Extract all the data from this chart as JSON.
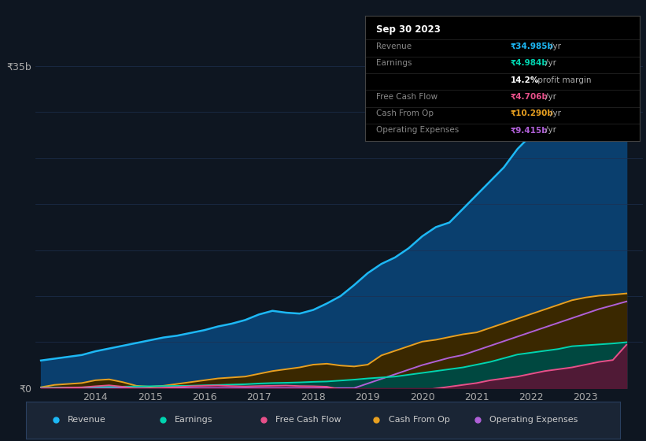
{
  "background_color": "#0e1621",
  "plot_bg_color": "#0e1621",
  "years": [
    2013.0,
    2013.25,
    2013.5,
    2013.75,
    2014.0,
    2014.25,
    2014.5,
    2014.75,
    2015.0,
    2015.25,
    2015.5,
    2015.75,
    2016.0,
    2016.25,
    2016.5,
    2016.75,
    2017.0,
    2017.25,
    2017.5,
    2017.75,
    2018.0,
    2018.25,
    2018.5,
    2018.75,
    2019.0,
    2019.25,
    2019.5,
    2019.75,
    2020.0,
    2020.25,
    2020.5,
    2020.75,
    2021.0,
    2021.25,
    2021.5,
    2021.75,
    2022.0,
    2022.25,
    2022.5,
    2022.75,
    2023.0,
    2023.25,
    2023.5,
    2023.75
  ],
  "revenue": [
    3.0,
    3.2,
    3.4,
    3.6,
    4.0,
    4.3,
    4.6,
    4.9,
    5.2,
    5.5,
    5.7,
    6.0,
    6.3,
    6.7,
    7.0,
    7.4,
    8.0,
    8.4,
    8.2,
    8.1,
    8.5,
    9.2,
    10.0,
    11.2,
    12.5,
    13.5,
    14.2,
    15.2,
    16.5,
    17.5,
    18.0,
    19.5,
    21.0,
    22.5,
    24.0,
    26.0,
    27.5,
    29.0,
    30.5,
    32.5,
    33.5,
    34.2,
    34.7,
    34.985
  ],
  "earnings": [
    0.05,
    0.06,
    0.07,
    0.08,
    0.12,
    0.14,
    0.16,
    0.18,
    0.2,
    0.22,
    0.24,
    0.26,
    0.3,
    0.34,
    0.38,
    0.42,
    0.5,
    0.55,
    0.58,
    0.62,
    0.68,
    0.72,
    0.82,
    0.92,
    1.05,
    1.15,
    1.25,
    1.45,
    1.65,
    1.85,
    2.05,
    2.25,
    2.55,
    2.85,
    3.25,
    3.65,
    3.85,
    4.05,
    4.25,
    4.55,
    4.65,
    4.75,
    4.85,
    4.984
  ],
  "free_cash_flow": [
    0.0,
    0.0,
    0.05,
    0.08,
    0.2,
    0.3,
    0.15,
    -0.05,
    -0.05,
    0.05,
    0.1,
    0.2,
    0.25,
    0.28,
    0.22,
    0.18,
    0.22,
    0.25,
    0.28,
    0.22,
    0.2,
    0.15,
    -0.15,
    -0.45,
    -0.85,
    -0.95,
    -0.75,
    -0.45,
    -0.25,
    -0.05,
    0.15,
    0.35,
    0.55,
    0.85,
    1.05,
    1.25,
    1.55,
    1.85,
    2.05,
    2.25,
    2.55,
    2.85,
    3.05,
    4.706
  ],
  "cash_from_op": [
    0.1,
    0.35,
    0.45,
    0.55,
    0.85,
    0.95,
    0.65,
    0.25,
    0.15,
    0.25,
    0.45,
    0.65,
    0.85,
    1.05,
    1.15,
    1.25,
    1.55,
    1.85,
    2.05,
    2.25,
    2.55,
    2.65,
    2.45,
    2.35,
    2.55,
    3.55,
    4.05,
    4.55,
    5.05,
    5.25,
    5.55,
    5.85,
    6.05,
    6.55,
    7.05,
    7.55,
    8.05,
    8.55,
    9.05,
    9.55,
    9.85,
    10.05,
    10.15,
    10.29
  ],
  "operating_expenses": [
    0.0,
    0.0,
    0.0,
    0.0,
    0.0,
    0.0,
    0.0,
    0.0,
    0.0,
    0.0,
    0.0,
    0.0,
    0.0,
    0.0,
    0.0,
    0.0,
    0.0,
    0.0,
    0.0,
    0.0,
    0.0,
    0.0,
    0.0,
    0.0,
    0.5,
    1.0,
    1.5,
    2.0,
    2.5,
    2.9,
    3.3,
    3.6,
    4.1,
    4.6,
    5.1,
    5.6,
    6.1,
    6.6,
    7.1,
    7.6,
    8.1,
    8.6,
    9.0,
    9.415
  ],
  "ylim": [
    0,
    35
  ],
  "grid_color": "#1e3050",
  "revenue_color": "#1db8f5",
  "earnings_color": "#00d4b0",
  "free_cash_flow_color": "#e8508a",
  "cash_from_op_color": "#e8a020",
  "operating_expenses_color": "#b060d8",
  "revenue_fill": "#0a3f6e",
  "earnings_fill": "#004840",
  "cash_from_op_fill": "#3a2800",
  "operating_expenses_fill": "#2a1050",
  "xtick_years": [
    2014,
    2015,
    2016,
    2017,
    2018,
    2019,
    2020,
    2021,
    2022,
    2023
  ],
  "tooltip_title": "Sep 30 2023",
  "tooltip_rows": [
    {
      "label": "Revenue",
      "color": "#1db8f5",
      "value": "₹34.985b /yr"
    },
    {
      "label": "Earnings",
      "color": "#00d4b0",
      "value": "₹4.984b /yr"
    },
    {
      "label": "",
      "color": "#ffffff",
      "value": "14.2% profit margin"
    },
    {
      "label": "Free Cash Flow",
      "color": "#e8508a",
      "value": "₹4.706b /yr"
    },
    {
      "label": "Cash From Op",
      "color": "#e8a020",
      "value": "₹10.290b /yr"
    },
    {
      "label": "Operating Expenses",
      "color": "#b060d8",
      "value": "₹9.415b /yr"
    }
  ],
  "legend_items": [
    {
      "color": "#1db8f5",
      "label": "Revenue"
    },
    {
      "color": "#00d4b0",
      "label": "Earnings"
    },
    {
      "color": "#e8508a",
      "label": "Free Cash Flow"
    },
    {
      "color": "#e8a020",
      "label": "Cash From Op"
    },
    {
      "color": "#b060d8",
      "label": "Operating Expenses"
    }
  ]
}
